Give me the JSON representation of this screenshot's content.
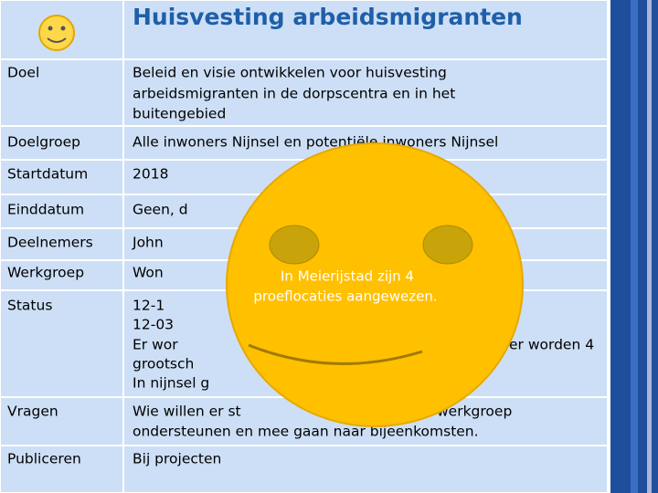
{
  "header": {
    "title": "Huisvesting arbeidsmigranten"
  },
  "table": {
    "rows": [
      {
        "label": "Doel",
        "lines": [
          "Beleid en visie ontwikkelen voor huisvesting",
          "arbeidsmigranten in de dorpscentra en in het",
          "buitengebied"
        ]
      },
      {
        "label": "Doelgroep",
        "lines": [
          "Alle inwoners Nijnsel en potentiële inwoners Nijnsel"
        ]
      },
      {
        "label": "Startdatum",
        "lines": [
          "2018"
        ]
      },
      {
        "label": "Einddatum",
        "lines": [
          "Geen, d"
        ]
      },
      {
        "label": "Deelnemers",
        "lines": [
          "John"
        ]
      },
      {
        "label": "Werkgroep",
        "lines": [
          "Won"
        ]
      },
      {
        "label": "Status",
        "lines": [
          "12-1",
          "12-03",
          "Er wor",
          "er worden 4",
          "grootsch",
          "In nijnsel g"
        ]
      },
      {
        "label": "Vragen",
        "lines": [
          "Wie willen er st",
          "werkgroep",
          "ondersteunen en mee gaan naar bijeenkomsten."
        ]
      },
      {
        "label": "Publiceren",
        "lines": [
          "Bij projecten"
        ]
      }
    ]
  },
  "overlay": {
    "lines": [
      "In Meierijstad zijn 4",
      "proeflocaties aangewezen."
    ]
  }
}
